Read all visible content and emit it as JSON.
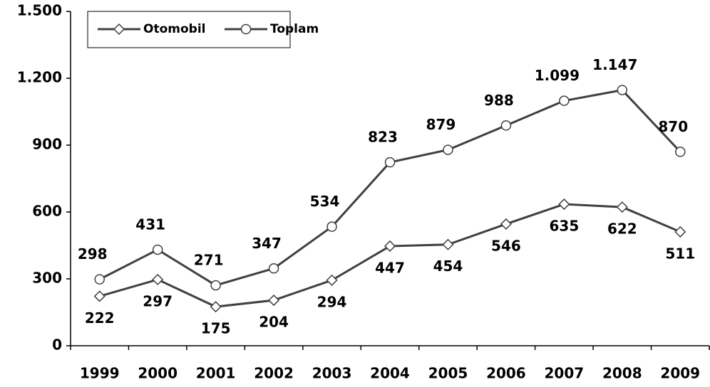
{
  "chart_data": {
    "type": "line",
    "categories": [
      "1999",
      "2000",
      "2001",
      "2002",
      "2003",
      "2004",
      "2005",
      "2006",
      "2007",
      "2008",
      "2009"
    ],
    "series": [
      {
        "name": "Otomobil",
        "color": "#404040",
        "marker": "diamond",
        "values": [
          222,
          297,
          175,
          204,
          294,
          447,
          454,
          546,
          635,
          622,
          511
        ]
      },
      {
        "name": "Toplam",
        "color": "#404040",
        "marker": "circle",
        "values": [
          298,
          431,
          271,
          347,
          534,
          823,
          879,
          988,
          1099,
          1147,
          870
        ],
        "value_labels": [
          "298",
          "431",
          "271",
          "347",
          "534",
          "823",
          "879",
          "988",
          "1.099",
          "1.147",
          "870"
        ]
      }
    ],
    "ylim": [
      0,
      1500
    ],
    "yticks": [
      0,
      300,
      600,
      900,
      {
        "value": 1200,
        "label": "1.200"
      },
      {
        "value": 1500,
        "label": "1.500"
      }
    ],
    "grid": false,
    "legend": "top-left"
  }
}
